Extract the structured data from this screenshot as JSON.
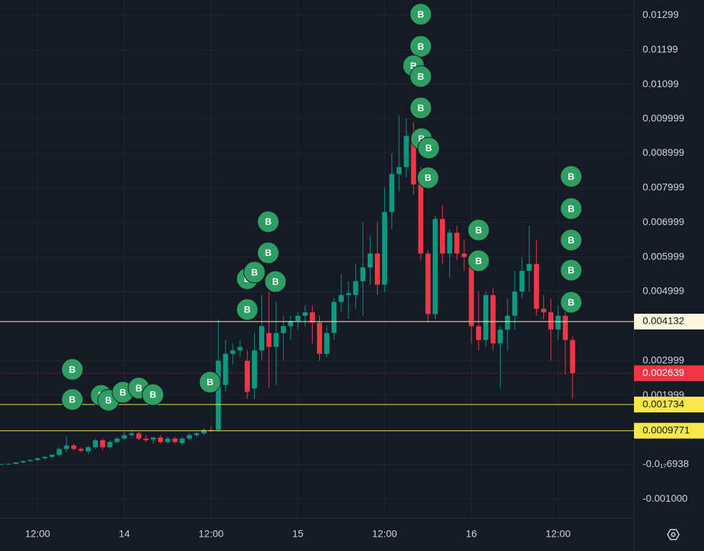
{
  "chart_data": {
    "type": "candlestick",
    "x": [
      -17,
      -16,
      -15,
      -14,
      -13,
      -12,
      -11,
      -10,
      -9,
      -8,
      -7,
      -6,
      -5,
      -4,
      -3,
      -2,
      -1,
      0,
      1,
      2,
      3,
      4,
      5,
      6,
      7,
      8,
      9,
      10,
      11,
      12,
      13,
      14,
      15,
      16,
      17,
      18,
      19,
      20,
      21,
      22,
      23,
      24,
      25,
      26,
      27,
      28,
      29,
      30,
      31,
      32,
      33,
      34,
      35,
      36,
      37,
      38,
      39,
      40,
      41,
      42,
      43,
      44,
      45,
      46,
      47,
      48,
      49,
      50,
      51,
      52,
      53,
      54,
      55,
      56,
      57,
      58,
      59,
      60,
      61,
      62
    ],
    "open": [
      0,
      1e-05,
      2e-05,
      6e-05,
      0.0001,
      0.00013,
      0.00018,
      0.00022,
      0.00028,
      0.00045,
      0.00055,
      0.00045,
      0.00038,
      0.0005,
      0.0007,
      0.0005,
      0.00065,
      0.00075,
      0.00085,
      0.0009,
      0.00075,
      0.00072,
      0.00078,
      0.00065,
      0.00075,
      0.00062,
      0.00075,
      0.00085,
      0.0009,
      0.001,
      0.001,
      0.0023,
      0.0032,
      0.0033,
      0.003,
      0.0022,
      0.0033,
      0.0038,
      0.0034,
      0.0038,
      0.004,
      0.00415,
      0.0043,
      0.0044,
      0.0041,
      0.0032,
      0.0038,
      0.0047,
      0.0049,
      0.0049,
      0.0053,
      0.0057,
      0.0061,
      0.0052,
      0.0073,
      0.0084,
      0.0086,
      0.0095,
      0.0081,
      0.0061,
      0.00435,
      0.0071,
      0.0061,
      0.0067,
      0.0061,
      0.006,
      0.004,
      0.0036,
      0.0049,
      0.0035,
      0.0039,
      0.0043,
      0.005,
      0.0056,
      0.0058,
      0.0045,
      0.0044,
      0.0039,
      0.0043,
      0.0036
    ],
    "high": [
      2e-05,
      3e-05,
      8e-05,
      0.00012,
      0.00015,
      0.0002,
      0.00025,
      0.0003,
      0.0005,
      0.00083,
      0.0006,
      0.0005,
      0.00055,
      0.00075,
      0.00075,
      0.0007,
      0.0008,
      0.00095,
      0.001,
      0.00095,
      0.00085,
      0.0008,
      0.00085,
      0.0008,
      0.0008,
      0.0008,
      0.0009,
      0.00095,
      0.00105,
      0.0011,
      0.0042,
      0.0036,
      0.0035,
      0.0036,
      0.0033,
      0.0038,
      0.0049,
      0.005,
      0.0047,
      0.0043,
      0.0043,
      0.0044,
      0.0046,
      0.0046,
      0.0043,
      0.004,
      0.0048,
      0.0055,
      0.0053,
      0.0058,
      0.007,
      0.0066,
      0.007,
      0.008,
      0.009,
      0.0101,
      0.01,
      0.0099,
      0.0086,
      0.0062,
      0.0072,
      0.0075,
      0.0068,
      0.0069,
      0.0065,
      0.0061,
      0.005,
      0.005,
      0.0051,
      0.004,
      0.0048,
      0.0056,
      0.006,
      0.0069,
      0.0065,
      0.0049,
      0.0048,
      0.0046,
      0.0046,
      0.0037
    ],
    "low": [
      0,
      0,
      2e-05,
      4e-05,
      8e-05,
      0.0001,
      0.00012,
      0.0002,
      0.00025,
      0.00035,
      0.0004,
      0.00035,
      0.0003,
      0.00045,
      0.0004,
      0.00045,
      0.0006,
      0.0007,
      0.0008,
      0.0007,
      0.00065,
      0.0006,
      0.0006,
      0.0006,
      0.0006,
      0.00055,
      0.0007,
      0.0008,
      0.00085,
      0.00095,
      0.00095,
      0.0021,
      0.0029,
      0.0031,
      0.0019,
      0.0019,
      0.003,
      0.0022,
      0.0023,
      0.003,
      0.0036,
      0.0039,
      0.004,
      0.0035,
      0.003,
      0.0031,
      0.0036,
      0.0044,
      0.0042,
      0.0045,
      0.0043,
      0.0052,
      0.0049,
      0.005,
      0.0068,
      0.0079,
      0.0083,
      0.0078,
      0.0059,
      0.0041,
      0.0042,
      0.0058,
      0.0054,
      0.0059,
      0.0056,
      0.0035,
      0.0033,
      0.0034,
      0.0033,
      0.0022,
      0.0033,
      0.0039,
      0.0048,
      0.005,
      0.0043,
      0.0042,
      0.003,
      0.0036,
      0.0026,
      0.0019
    ],
    "close": [
      1e-05,
      2e-05,
      6e-05,
      0.0001,
      0.00013,
      0.00018,
      0.00022,
      0.00028,
      0.00045,
      0.00055,
      0.00045,
      0.0004,
      0.0005,
      0.0007,
      0.0005,
      0.00065,
      0.00075,
      0.00085,
      0.0009,
      0.00075,
      0.0007,
      0.00078,
      0.00065,
      0.00075,
      0.00065,
      0.00075,
      0.00085,
      0.0009,
      0.001,
      0.00098,
      0.003,
      0.0032,
      0.0033,
      0.0034,
      0.0021,
      0.0033,
      0.004,
      0.0034,
      0.0038,
      0.004,
      0.00415,
      0.0043,
      0.0044,
      0.0041,
      0.0032,
      0.0038,
      0.0047,
      0.0049,
      0.00495,
      0.0053,
      0.0057,
      0.0061,
      0.0052,
      0.0073,
      0.0084,
      0.0086,
      0.0095,
      0.0081,
      0.0061,
      0.00435,
      0.0071,
      0.0061,
      0.0067,
      0.0061,
      0.006,
      0.004,
      0.0036,
      0.0049,
      0.0035,
      0.0039,
      0.0043,
      0.005,
      0.0056,
      0.0058,
      0.0045,
      0.0044,
      0.0039,
      0.0043,
      0.0036,
      0.002639
    ],
    "up_color": "#089981",
    "down_color": "#f23645",
    "xlim": [
      -17.2,
      70.5
    ],
    "xticks": [
      {
        "value": -12,
        "label": "12:00"
      },
      {
        "value": 0,
        "label": "14"
      },
      {
        "value": 12,
        "label": "12:00"
      },
      {
        "value": 24,
        "label": "15"
      },
      {
        "value": 36,
        "label": "12:00"
      },
      {
        "value": 48,
        "label": "16"
      },
      {
        "value": 60,
        "label": "12:00"
      }
    ],
    "ylim": [
      -0.00155,
      0.01343
    ],
    "yticks": [
      0.01299,
      0.01199,
      0.01099,
      0.009999,
      0.008999,
      0.007999,
      0.006999,
      0.005999,
      0.004999,
      0.002999,
      0.001999,
      {
        "value": -6.938e-18,
        "label": "-0.0₁₇6938"
      },
      {
        "value": -0.001,
        "label": "-0.001000"
      }
    ],
    "grid": true,
    "markers": {
      "label": "B",
      "color": "#2e9e62",
      "x": [
        -7.2,
        -7.2,
        -3.2,
        -2.2,
        -0.2,
        2.0,
        3.95,
        11.85,
        17.0,
        18.0,
        19.9,
        19.9,
        20.9,
        17.0,
        41.0,
        41.0,
        40.0,
        41.0,
        41.0,
        41.1,
        42.1,
        42.0,
        49.0,
        49.0,
        61.8,
        61.8,
        61.8,
        61.8,
        61.8
      ],
      "y": [
        0.00275,
        0.00188,
        0.002,
        0.00186,
        0.00209,
        0.00221,
        0.00202,
        0.00238,
        0.00537,
        0.00556,
        0.00702,
        0.00612,
        0.00529,
        0.00448,
        0.01302,
        0.01209,
        0.01153,
        0.01122,
        0.01031,
        0.00942,
        0.00915,
        0.00829,
        0.00678,
        0.00589,
        0.00833,
        0.0074,
        0.00649,
        0.00562,
        0.00469
      ]
    },
    "price_lines": [
      {
        "value": 0.004132,
        "color": "#fff8dc",
        "text_color": "#131722",
        "style": "solid"
      },
      {
        "value": 0.002639,
        "color": "#f23645",
        "text_color": "#ffffff",
        "style": "dotted"
      },
      {
        "value": 0.001734,
        "color": "#f7e84a",
        "text_color": "#131722",
        "style": "solid"
      },
      {
        "value": 0.0009771,
        "color": "#f7e84a",
        "text_color": "#131722",
        "style": "solid"
      }
    ]
  }
}
